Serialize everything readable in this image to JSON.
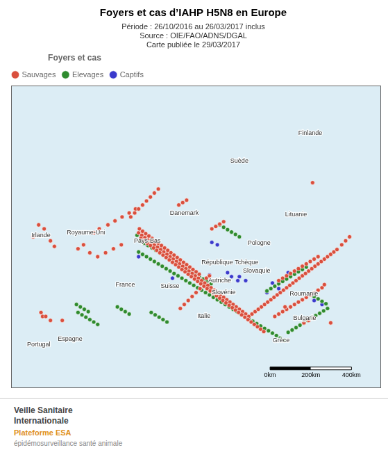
{
  "chart_data": {
    "type": "scatter",
    "title": "Foyers et cas d’IAHP H5N8 en Europe",
    "subtitle": [
      "Période : 26/10/2016 au 26/03/2017 inclus",
      "Source : OIE/FAO/ADNS/DGAL",
      "Carte publiée le 29/03/2017"
    ],
    "legend_title": "Foyers et cas",
    "legend": "upper left",
    "grid": false,
    "tick_labels": false,
    "xlim": [
      -12,
      35
    ],
    "ylim": [
      34,
      72
    ],
    "series": [
      {
        "name": "Sauvages",
        "color": "#d94f3d",
        "marker": "circle",
        "x": [
          -8.5,
          -7.8,
          -9.2,
          -7.0,
          -6.5,
          -8.0,
          -5.5,
          -3.5,
          -2.8,
          -2.0,
          -1.0,
          0.0,
          1.0,
          2.0,
          -1.5,
          -0.8,
          0.3,
          1.2,
          2.1,
          3.0,
          3.8,
          4.2,
          4.6,
          5.0,
          5.4,
          5.8,
          6.2,
          6.6,
          7.0,
          7.4,
          7.8,
          8.2,
          8.6,
          9.0,
          9.4,
          9.8,
          10.2,
          10.6,
          11.0,
          11.4,
          11.8,
          12.2,
          12.6,
          13.0,
          13.4,
          13.8,
          14.2,
          14.6,
          15.0,
          15.4,
          15.8,
          16.2,
          16.6,
          17.0,
          17.4,
          17.8,
          18.2,
          18.6,
          19.0,
          19.4,
          19.8,
          20.2,
          20.6,
          21.0,
          21.4,
          21.8,
          22.2,
          22.6,
          23.0,
          23.4,
          23.8,
          24.2,
          24.6,
          25.0,
          25.4,
          25.8,
          26.2,
          26.6,
          27.0,
          27.4,
          27.8,
          28.2,
          28.6,
          29.0,
          29.4,
          30.0,
          30.5,
          31.0,
          4.5,
          4.9,
          5.3,
          5.7,
          6.1,
          6.5,
          6.9,
          7.3,
          7.7,
          8.1,
          8.5,
          8.9,
          9.3,
          9.7,
          10.1,
          10.5,
          10.9,
          11.3,
          11.7,
          12.1,
          12.5,
          12.9,
          13.3,
          13.7,
          14.1,
          14.5,
          14.9,
          15.3,
          15.7,
          16.1,
          16.5,
          16.9,
          17.3,
          17.7,
          18.1,
          18.5,
          18.9,
          19.3,
          19.7,
          20.1,
          4.3,
          4.7,
          5.1,
          5.5,
          5.9,
          6.3,
          6.7,
          7.1,
          7.5,
          7.9,
          8.3,
          8.7,
          9.1,
          9.5,
          9.9,
          10.3,
          10.7,
          11.1,
          11.5,
          11.9,
          3.2,
          3.7,
          4.2,
          4.7,
          5.2,
          5.7,
          6.2,
          6.7,
          9.5,
          10.0,
          10.5,
          11.0,
          11.5,
          12.0,
          22.0,
          22.5,
          23.0,
          23.5,
          24.0,
          24.5,
          25.0,
          25.5,
          26.0,
          26.5,
          27.0,
          -8.2,
          -7.6,
          -7.0,
          21.5,
          22.0,
          22.5,
          23.0,
          23.5,
          24.0,
          24.5,
          25.0,
          25.5,
          26.0,
          26.5,
          27.0,
          27.5,
          13.5,
          14.0,
          14.5,
          15.0,
          9.3,
          9.8,
          10.3,
          25.2,
          25.8,
          26.4,
          12.8,
          13.2,
          22.8,
          26.3,
          27.8,
          28.6
        ],
        "values": [
          54.5,
          54.0,
          53.0,
          52.5,
          51.8,
          43.0,
          42.5,
          51.5,
          52.0,
          51.0,
          50.5,
          51.0,
          51.5,
          52.0,
          53.5,
          54.0,
          54.5,
          55.0,
          55.5,
          56.0,
          56.5,
          53.5,
          53.2,
          52.9,
          52.6,
          52.3,
          52.0,
          51.7,
          51.4,
          51.1,
          50.8,
          50.5,
          50.2,
          49.9,
          49.6,
          49.3,
          49.0,
          48.7,
          48.4,
          48.1,
          47.8,
          47.5,
          47.2,
          46.9,
          46.6,
          46.3,
          46.0,
          45.7,
          45.4,
          45.1,
          44.8,
          44.5,
          44.2,
          43.9,
          43.6,
          43.3,
          43.0,
          43.3,
          43.6,
          43.9,
          44.2,
          44.5,
          44.8,
          45.1,
          45.4,
          45.7,
          46.0,
          46.3,
          46.6,
          46.9,
          47.2,
          47.5,
          47.8,
          48.1,
          48.4,
          48.7,
          49.0,
          49.3,
          49.6,
          49.9,
          50.2,
          50.5,
          50.8,
          51.1,
          51.4,
          52.0,
          52.5,
          53.0,
          52.8,
          52.5,
          52.2,
          51.9,
          51.6,
          51.3,
          51.0,
          50.7,
          50.4,
          50.1,
          49.8,
          49.5,
          49.2,
          48.9,
          48.6,
          48.3,
          48.0,
          47.7,
          47.4,
          47.1,
          46.8,
          46.5,
          46.2,
          45.9,
          45.6,
          45.3,
          45.0,
          44.7,
          44.4,
          44.1,
          43.8,
          43.5,
          43.2,
          42.9,
          42.6,
          42.3,
          42.0,
          41.7,
          41.4,
          41.1,
          54.0,
          53.7,
          53.4,
          53.1,
          52.8,
          52.5,
          52.2,
          51.9,
          51.6,
          51.3,
          51.0,
          50.7,
          50.4,
          50.1,
          49.8,
          49.5,
          49.2,
          48.9,
          48.6,
          48.3,
          55.5,
          56.0,
          56.5,
          57.0,
          57.5,
          58.0,
          58.5,
          59.0,
          44.0,
          44.5,
          45.0,
          45.5,
          46.0,
          46.5,
          47.5,
          47.8,
          48.1,
          48.4,
          48.7,
          49.0,
          49.3,
          49.6,
          49.9,
          50.2,
          50.5,
          43.5,
          43.0,
          42.5,
          43.0,
          43.3,
          43.6,
          43.9,
          44.2,
          44.5,
          44.8,
          45.1,
          45.4,
          45.7,
          46.0,
          46.3,
          46.6,
          54.0,
          54.3,
          54.6,
          54.9,
          57.0,
          57.3,
          57.6,
          42.2,
          42.5,
          42.8,
          47.8,
          48.1,
          44.2,
          59.8,
          47.0,
          42.2
        ]
      },
      {
        "name": "Elevages",
        "color": "#2e8b2e",
        "marker": "circle",
        "x": [
          4.0,
          4.5,
          5.0,
          5.5,
          6.0,
          6.5,
          7.0,
          4.2,
          4.7,
          5.2,
          5.7,
          6.2,
          6.7,
          7.2,
          7.7,
          8.2,
          8.7,
          9.2,
          9.7,
          10.2,
          10.7,
          11.2,
          11.7,
          12.2,
          12.7,
          13.2,
          13.7,
          14.2,
          14.7,
          15.2,
          15.7,
          16.2,
          16.7,
          17.2,
          17.7,
          18.2,
          18.7,
          19.2,
          19.7,
          20.2,
          20.7,
          21.2,
          21.7,
          22.2,
          22.7,
          23.2,
          23.7,
          24.2,
          24.7,
          25.2,
          25.7,
          26.2,
          26.7,
          27.2,
          27.7,
          28.2,
          4.4,
          4.9,
          5.4,
          5.9,
          6.4,
          6.9,
          7.4,
          7.9,
          8.4,
          8.9,
          9.4,
          9.9,
          10.4,
          10.9,
          11.4,
          11.9,
          12.4,
          12.9,
          13.4,
          -3.5,
          -3.0,
          -2.5,
          -2.0,
          -1.5,
          -1.0,
          -3.7,
          -3.2,
          -2.7,
          -2.2,
          1.5,
          2.0,
          2.5,
          3.0,
          20.5,
          21.0,
          21.5,
          22.0,
          22.5,
          23.0,
          23.5,
          24.0,
          24.5,
          25.0,
          25.5,
          26.5,
          27.0,
          27.5,
          28.0,
          5.8,
          6.3,
          6.8,
          7.3,
          7.8,
          14.5,
          15.0,
          15.5,
          16.0,
          16.5,
          17.0
        ],
        "values": [
          53.2,
          52.9,
          52.6,
          52.3,
          52.0,
          51.7,
          51.4,
          51.1,
          50.8,
          50.5,
          50.2,
          49.9,
          49.6,
          49.3,
          49.0,
          48.7,
          48.4,
          48.1,
          47.8,
          47.5,
          47.2,
          46.9,
          46.6,
          46.3,
          46.0,
          45.7,
          45.4,
          45.1,
          44.8,
          44.5,
          44.2,
          43.9,
          43.6,
          43.3,
          43.0,
          42.7,
          42.4,
          42.1,
          41.8,
          41.5,
          41.2,
          40.9,
          40.6,
          40.3,
          40.0,
          41.0,
          41.3,
          41.6,
          41.9,
          42.2,
          42.5,
          42.8,
          43.1,
          43.4,
          43.7,
          44.0,
          52.5,
          52.2,
          51.9,
          51.6,
          51.3,
          51.0,
          50.7,
          50.4,
          50.1,
          49.8,
          49.5,
          49.2,
          48.9,
          48.6,
          48.3,
          48.0,
          47.7,
          47.4,
          47.1,
          43.5,
          43.2,
          42.9,
          42.6,
          42.3,
          42.0,
          44.5,
          44.2,
          43.9,
          43.6,
          44.2,
          43.9,
          43.6,
          43.3,
          46.2,
          46.5,
          46.8,
          47.1,
          47.4,
          47.7,
          48.0,
          48.3,
          48.6,
          48.9,
          49.2,
          45.5,
          45.2,
          44.9,
          44.6,
          43.5,
          43.2,
          42.9,
          42.6,
          42.3,
          54.5,
          54.2,
          53.9,
          53.6,
          53.3,
          53.0
        ]
      },
      {
        "name": "Captifs",
        "color": "#3a3acc",
        "marker": "circle",
        "x": [
          4.9,
          5.3,
          13.5,
          14.2,
          15.5,
          16.0,
          16.8,
          21.2,
          22.0,
          26.5,
          27.5,
          4.2,
          8.5,
          13.2,
          17.0,
          17.8,
          20.5,
          23.2
        ],
        "values": [
          52.5,
          52.0,
          52.3,
          52.0,
          48.5,
          48.0,
          47.5,
          47.2,
          46.5,
          45.0,
          44.5,
          50.5,
          47.8,
          48.2,
          48.0,
          47.5,
          46.0,
          48.5
        ]
      }
    ],
    "annotations": [
      {
        "text": "Finlande",
        "x": 26.0,
        "y": 66.0
      },
      {
        "text": "Suède",
        "x": 17.0,
        "y": 62.5
      },
      {
        "text": "Lituanie",
        "x": 24.2,
        "y": 55.8
      },
      {
        "text": "Pologne",
        "x": 19.5,
        "y": 52.2
      },
      {
        "text": "Royaume-Uni",
        "x": -2.5,
        "y": 53.5
      },
      {
        "text": "Irlande",
        "x": -8.2,
        "y": 53.2
      },
      {
        "text": "France",
        "x": 2.5,
        "y": 47.0
      },
      {
        "text": "Espagne",
        "x": -4.5,
        "y": 40.2
      },
      {
        "text": "Portugal",
        "x": -8.5,
        "y": 39.5
      },
      {
        "text": "Italie",
        "x": 12.5,
        "y": 43.0
      },
      {
        "text": "Roumanie",
        "x": 25.2,
        "y": 45.8
      },
      {
        "text": "Bulgarie",
        "x": 25.3,
        "y": 42.8
      },
      {
        "text": "Grèce",
        "x": 22.3,
        "y": 40.0
      },
      {
        "text": "Suisse",
        "x": 8.2,
        "y": 46.8
      },
      {
        "text": "Autriche",
        "x": 14.5,
        "y": 47.5
      },
      {
        "text": "République Tchèque",
        "x": 15.8,
        "y": 49.8
      },
      {
        "text": "Slovaquie",
        "x": 19.2,
        "y": 48.7
      },
      {
        "text": "Danemark",
        "x": 10.0,
        "y": 56.0
      },
      {
        "text": "Slovénie",
        "x": 15.0,
        "y": 46.0
      },
      {
        "text": "Pays-Bas",
        "x": 5.3,
        "y": 52.5
      }
    ],
    "scale_bar_labels": [
      "0km",
      "200km",
      "400km"
    ],
    "footer_text": [
      "Veille Sanitaire",
      "Internationale",
      "Plateforme ESA",
      "épidémosurveillance santé animale"
    ]
  }
}
